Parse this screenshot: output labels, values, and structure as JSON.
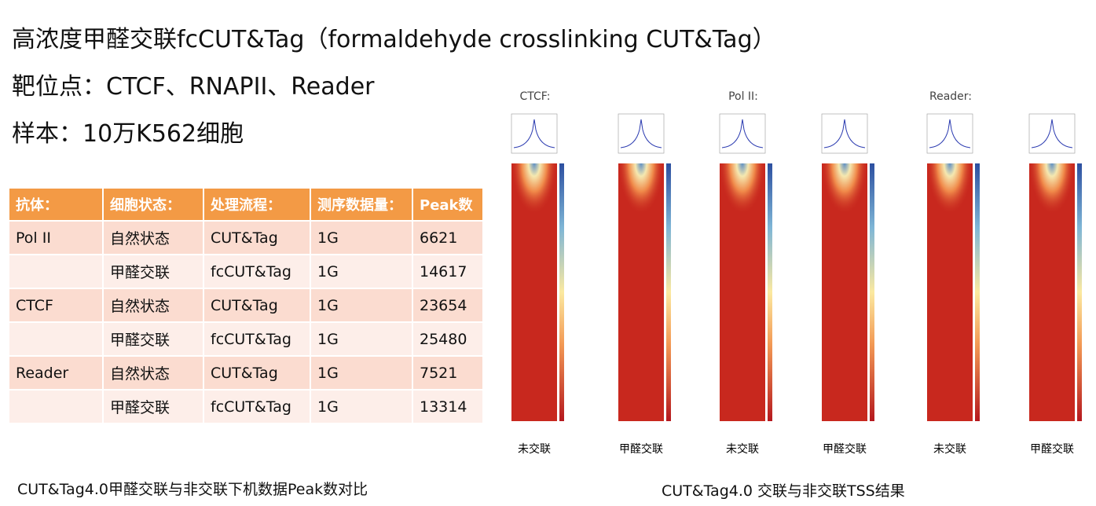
{
  "header": {
    "title": "高浓度甲醛交联fcCUT&Tag（formaldehyde crosslinking CUT&Tag）",
    "targets": "靶位点：CTCF、RNAPII、Reader",
    "sample": "样本：10万K562细胞"
  },
  "table": {
    "columns": [
      "抗体：",
      "细胞状态：",
      "处理流程：",
      "测序数据量：",
      "Peak数"
    ],
    "rows": [
      [
        "Pol II",
        "自然状态",
        "CUT&Tag",
        "1G",
        "6621"
      ],
      [
        null,
        "甲醛交联",
        "fcCUT&Tag",
        "1G",
        "14617"
      ],
      [
        "CTCF",
        "自然状态",
        "CUT&Tag",
        "1G",
        "23654"
      ],
      [
        null,
        "甲醛交联",
        "fcCUT&Tag",
        "1G",
        "25480"
      ],
      [
        "Reader",
        "自然状态",
        "CUT&Tag",
        "1G",
        "7521"
      ],
      [
        null,
        "甲醛交联",
        "fcCUT&Tag",
        "1G",
        "13314"
      ]
    ]
  },
  "figure": {
    "groups": [
      {
        "label": "CTCF:",
        "panels": [
          "未交联",
          "甲醛交联"
        ]
      },
      {
        "label": "Pol II:",
        "panels": [
          "未交联",
          "甲醛交联"
        ]
      },
      {
        "label": "Reader:",
        "panels": [
          "未交联",
          "甲醛交联"
        ]
      }
    ]
  },
  "captions": {
    "left": "CUT&Tag4.0甲醛交联与非交联下机数据Peak数对比",
    "right": "CUT&Tag4.0 交联与非交联TSS结果"
  }
}
